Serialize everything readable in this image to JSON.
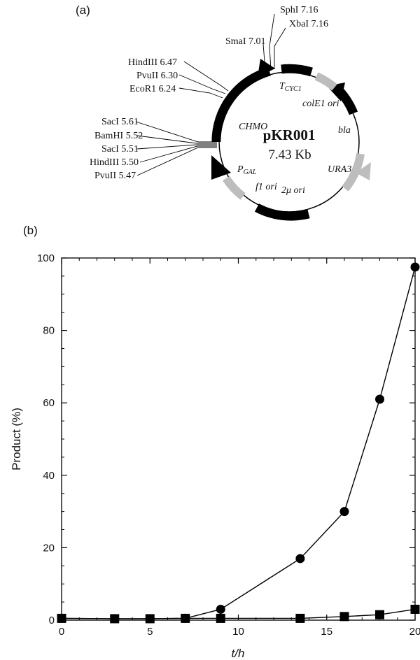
{
  "panel_a": {
    "label": "(a)",
    "plasmid": {
      "name": "pKR001",
      "size": "7.43 Kb"
    },
    "sites": {
      "sphi": "SphI 7.16",
      "xbai": "XbaI 7.16",
      "smai": "SmaI 7.01",
      "hindiii_1": "HindIII 6.47",
      "pvuii_1": "PvuII 6.30",
      "ecori": "EcoR1 6.24",
      "saci_1": "SacI 5.61",
      "bamhi": "BamHI 5.52",
      "saci_2": "SacI 5.51",
      "hindiii_2": "HindIII 5.50",
      "pvuii_2": "PvuII 5.47"
    },
    "features": {
      "tcyc": "TCYC1",
      "colei": "colE1 ori",
      "chmo": "CHMO",
      "bla": "bla",
      "pgal": "PGAL",
      "f1": "f1 ori",
      "ura3": "URA3",
      "two_mu": "2μ ori"
    },
    "colors": {
      "dark": "#000000",
      "light": "#bdbdbd"
    }
  },
  "panel_b": {
    "label": "(b)",
    "chart_data": {
      "type": "line",
      "xlabel": "t/h",
      "ylabel": "Product (%)",
      "xlim": [
        0,
        20
      ],
      "ylim": [
        0,
        100
      ],
      "xticks": [
        0,
        5,
        10,
        15,
        20
      ],
      "yticks": [
        0,
        20,
        40,
        60,
        80,
        100
      ],
      "grid": false,
      "series": [
        {
          "marker": "circle",
          "points": [
            [
              0,
              0.5
            ],
            [
              3,
              0.4
            ],
            [
              5,
              0.4
            ],
            [
              7,
              0.5
            ],
            [
              9,
              3
            ],
            [
              13.5,
              17
            ],
            [
              16,
              30
            ],
            [
              18,
              61
            ],
            [
              20,
              97.5
            ]
          ]
        },
        {
          "marker": "square",
          "points": [
            [
              0,
              0.5
            ],
            [
              3,
              0.4
            ],
            [
              5,
              0.4
            ],
            [
              7,
              0.5
            ],
            [
              9,
              0.5
            ],
            [
              13.5,
              0.5
            ],
            [
              16,
              1
            ],
            [
              18,
              1.5
            ],
            [
              20,
              3
            ]
          ]
        }
      ]
    }
  }
}
